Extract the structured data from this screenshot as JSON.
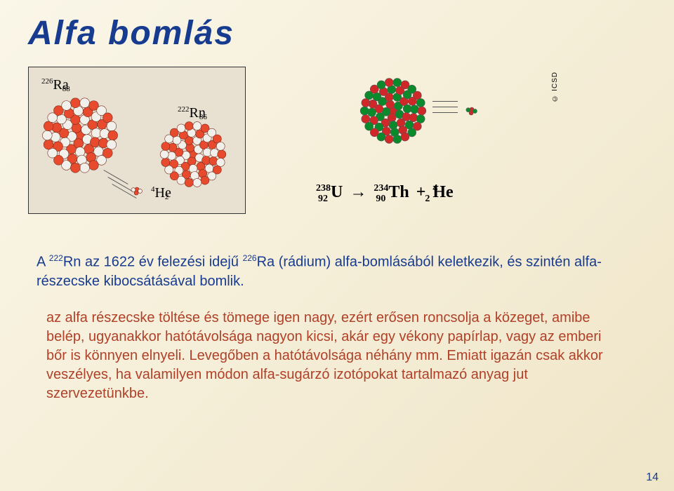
{
  "title": {
    "text": "Alfa bomlás",
    "color": "#163b8f",
    "fontsize": 48
  },
  "page_number": "14",
  "diagram_left": {
    "background": "#e8e0d0",
    "border": "#333333",
    "parent_label": {
      "mass": "226",
      "atom": "88",
      "symbol": "Ra",
      "color": "#2a2a2a"
    },
    "daughter_label": {
      "mass": "222",
      "atom": "86",
      "symbol": "Rn",
      "color": "#2a2a2a"
    },
    "alpha_label": {
      "mass": "4",
      "atom": "2",
      "symbol": "He",
      "color": "#2a2a2a"
    },
    "nucleon_colors": {
      "proton": "#e84a2e",
      "neutron": "#f2f0ea",
      "outline": "#7a2a1a"
    },
    "parent_radius": 55,
    "daughter_radius": 48,
    "alpha_radius": 12,
    "motion_lines": 3
  },
  "diagram_right": {
    "nucleon_colors": {
      "proton": "#d02828",
      "neutron": "#0a8a2a",
      "outline": "#555555"
    },
    "parent_radius": 48,
    "alpha_radius": 10,
    "motion_lines": 3,
    "icsd": "© ICSD",
    "equation": {
      "u": {
        "mass": "238",
        "atom": "92",
        "symbol": "U"
      },
      "arrow": "→",
      "th": {
        "mass": "234",
        "atom": "90",
        "symbol": "Th"
      },
      "plus": "+",
      "he": {
        "mass": "4",
        "atom": "2",
        "symbol": "He"
      },
      "color": "#1a1a1a"
    }
  },
  "paragraph1": {
    "color": "#163b8f",
    "fontsize": 20,
    "text_pre": "A ",
    "iso1": {
      "mass": "222",
      "sym": "Rn"
    },
    "text_mid1": " az 1622 év felezési idejű ",
    "iso2": {
      "mass": "226",
      "sym": "Ra"
    },
    "text_post": " (rádium) alfa-bomlásából keletkezik, és szintén alfa-részecske kibocsátásával bomlik."
  },
  "paragraph2": {
    "color": "#b04028",
    "fontsize": 20,
    "text": "az alfa részecske töltése és tömege igen nagy, ezért erősen roncsolja a közeget, amibe belép, ugyanakkor hatótávolsága  nagyon kicsi, akár egy vékony papírlap, vagy az emberi bőr is könnyen elnyeli. Levegőben a hatótávolsága néhány mm. Emiatt igazán csak akkor veszélyes, ha valamilyen módon alfa-sugárzó izotópokat tartalmazó anyag jut szervezetünkbe."
  }
}
